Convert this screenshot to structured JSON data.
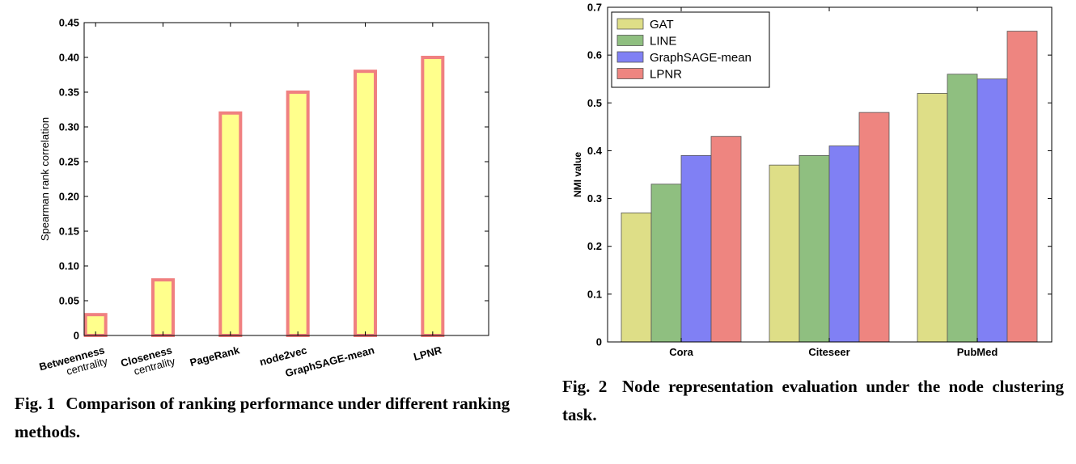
{
  "chart_data": [
    {
      "type": "bar",
      "categories": [
        [
          "Betweenness",
          "centrality"
        ],
        [
          "Closeness",
          "centrality"
        ],
        [
          "PageRank"
        ],
        [
          "node2vec"
        ],
        [
          "GraphSAGE-mean"
        ],
        [
          "LPNR"
        ]
      ],
      "values": [
        0.03,
        0.08,
        0.32,
        0.35,
        0.38,
        0.4
      ],
      "ylabel": "Spearman rank correlation",
      "ylim": [
        0,
        0.45
      ],
      "yticks": [
        "0",
        "0.05",
        "0.10",
        "0.15",
        "0.20",
        "0.25",
        "0.30",
        "0.35",
        "0.40",
        "0.45"
      ],
      "bar_fill": "#ffff8c",
      "bar_edge": "#f08080",
      "grid": false
    },
    {
      "type": "bar",
      "categories": [
        "Cora",
        "Citeseer",
        "PubMed"
      ],
      "series": [
        {
          "name": "GAT",
          "values": [
            0.27,
            0.37,
            0.52
          ],
          "color": "#dede87"
        },
        {
          "name": "LINE",
          "values": [
            0.33,
            0.39,
            0.56
          ],
          "color": "#8fbf80"
        },
        {
          "name": "GraphSAGE-mean",
          "values": [
            0.39,
            0.41,
            0.55
          ],
          "color": "#8080f4"
        },
        {
          "name": "LPNR",
          "values": [
            0.43,
            0.48,
            0.65
          ],
          "color": "#ee8580"
        }
      ],
      "ylabel": "NMI value",
      "ylim": [
        0,
        0.7
      ],
      "yticks": [
        "0",
        "0.1",
        "0.2",
        "0.3",
        "0.4",
        "0.5",
        "0.6",
        "0.7"
      ],
      "legend": "top-left",
      "grid": false
    }
  ],
  "captions": {
    "fig1_label": "Fig. 1",
    "fig1_text": "Comparison of ranking performance under different ranking methods.",
    "fig2_label": "Fig. 2",
    "fig2_text": "Node representation evaluation under the node clustering task."
  }
}
